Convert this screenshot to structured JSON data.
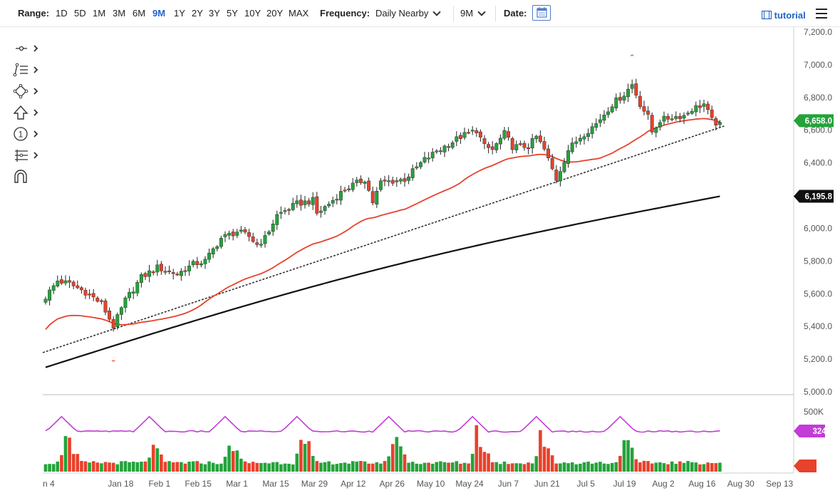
{
  "toolbar": {
    "range_label": "Range:",
    "ranges": [
      "1D",
      "5D",
      "1M",
      "3M",
      "6M",
      "9M",
      "1Y",
      "2Y",
      "3Y",
      "5Y",
      "10Y",
      "20Y",
      "MAX"
    ],
    "active_range": "9M",
    "frequency_label": "Frequency:",
    "frequency_value": "Daily Nearby",
    "period_value": "9M",
    "date_label": "Date:",
    "tutorial_label": "tutorial"
  },
  "tools": [
    "crosshair-icon",
    "trendline-icon",
    "shapes-icon",
    "arrow-up-icon",
    "annotation-number-icon",
    "fibonacci-icon",
    "magnet-icon"
  ],
  "tool_annotation_text": "1",
  "colors": {
    "up": "#23a33a",
    "down": "#e8412c",
    "ma_fast": "#e8412c",
    "ma_slow": "#111111",
    "trendline": "#333333",
    "volume_avg": "#c23cd6",
    "last_price_tag": "#23a33a",
    "slow_ma_tag": "#111111",
    "vol_avg_tag": "#c23cd6",
    "vol_last_tag": "#e8412c"
  },
  "chart_data": [
    {
      "type": "candlestick",
      "name": "price",
      "x_tick_labels": [
        "n 4",
        "Jan 18",
        "Feb 1",
        "Feb 15",
        "Mar 1",
        "Mar 15",
        "Mar 29",
        "Apr 12",
        "Apr 26",
        "May 10",
        "May 24",
        "Jun 7",
        "Jun 21",
        "Jul 5",
        "Jul 19",
        "Aug 2",
        "Aug 16",
        "Aug 30",
        "Sep 13"
      ],
      "y_ticks": [
        "7,200.0",
        "7,000.0",
        "6,800.0",
        "6,600.0",
        "6,400.0",
        "6,200.0",
        "6,000.0",
        "5,800.0",
        "5,600.0",
        "5,400.0",
        "5,200.0",
        "5,000.0"
      ],
      "ylim": [
        5000,
        7200
      ],
      "grid": false,
      "close_anchors": [
        [
          0,
          5580
        ],
        [
          3,
          5680
        ],
        [
          6,
          5660
        ],
        [
          10,
          5610
        ],
        [
          14,
          5540
        ],
        [
          17,
          5400
        ],
        [
          20,
          5560
        ],
        [
          24,
          5700
        ],
        [
          28,
          5760
        ],
        [
          33,
          5720
        ],
        [
          37,
          5780
        ],
        [
          40,
          5800
        ],
        [
          44,
          5940
        ],
        [
          48,
          5980
        ],
        [
          51,
          5950
        ],
        [
          53,
          5900
        ],
        [
          55,
          5940
        ],
        [
          58,
          6080
        ],
        [
          63,
          6150
        ],
        [
          67,
          6170
        ],
        [
          68,
          6090
        ],
        [
          71,
          6150
        ],
        [
          75,
          6240
        ],
        [
          80,
          6300
        ],
        [
          82,
          6160
        ],
        [
          84,
          6280
        ],
        [
          90,
          6300
        ],
        [
          95,
          6420
        ],
        [
          100,
          6500
        ],
        [
          104,
          6560
        ],
        [
          108,
          6600
        ],
        [
          110,
          6500
        ],
        [
          112,
          6480
        ],
        [
          115,
          6580
        ],
        [
          117,
          6500
        ],
        [
          121,
          6500
        ],
        [
          123,
          6560
        ],
        [
          125,
          6480
        ],
        [
          128,
          6300
        ],
        [
          131,
          6480
        ],
        [
          134,
          6560
        ],
        [
          138,
          6640
        ],
        [
          142,
          6760
        ],
        [
          145,
          6820
        ],
        [
          147,
          6880
        ],
        [
          149,
          6760
        ],
        [
          151,
          6680
        ],
        [
          152,
          6590
        ],
        [
          154,
          6660
        ],
        [
          157,
          6680
        ],
        [
          160,
          6690
        ],
        [
          162,
          6730
        ],
        [
          165,
          6760
        ],
        [
          167,
          6660
        ],
        [
          169,
          6630
        ]
      ],
      "ma50_last": 6650,
      "ma200_last": 6195.8,
      "trendline": [
        [
          5240,
          0
        ],
        [
          6625,
          169
        ]
      ],
      "markers": {
        "low_marker_x": 17,
        "high_marker_x": 147
      },
      "last_price": "6,658.0",
      "ma200_value": "6,195.8"
    },
    {
      "type": "bar",
      "name": "volume",
      "y_ticks": [
        "500K"
      ],
      "ylim": [
        0,
        500000
      ],
      "avg_value": "324K",
      "last_value": "0K",
      "spikes": [
        [
          5,
          395000
        ],
        [
          27,
          335000
        ],
        [
          46,
          355000
        ],
        [
          64,
          430000
        ],
        [
          87,
          365000
        ],
        [
          108,
          425000
        ],
        [
          124,
          370000
        ],
        [
          145,
          375000
        ]
      ],
      "base_volume": 60000,
      "avg_base": 330000
    }
  ]
}
